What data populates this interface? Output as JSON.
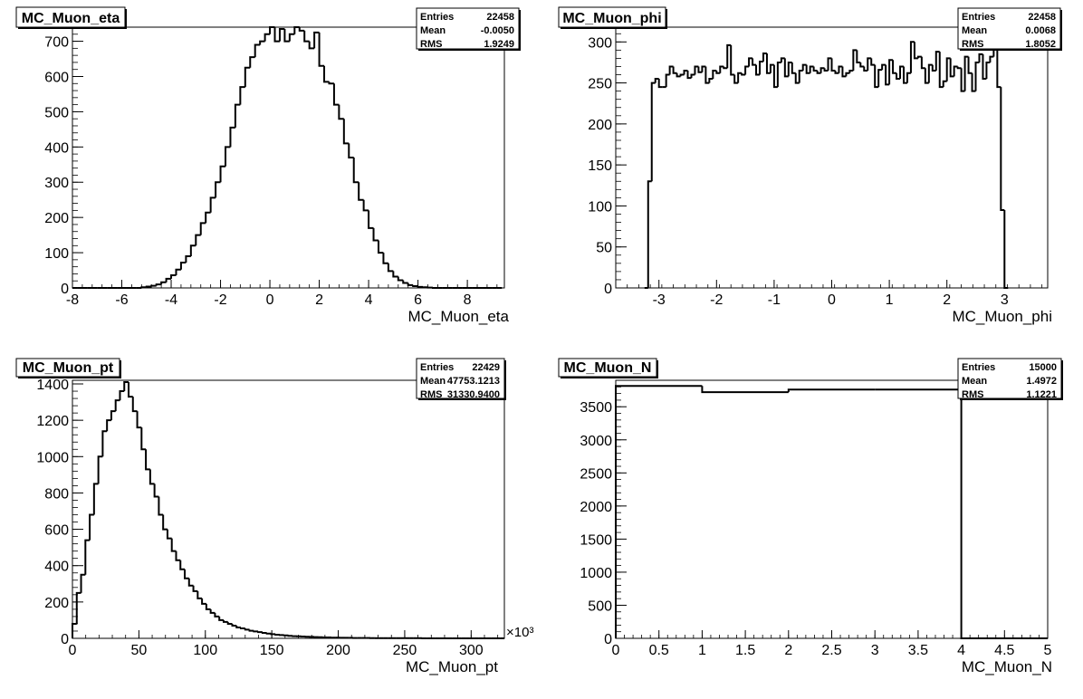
{
  "chart_data": [
    {
      "type": "histogram",
      "title": "MC_Muon_eta",
      "xlabel": "MC_Muon_eta",
      "xlim": [
        -8,
        9.5
      ],
      "ylim": [
        0,
        740
      ],
      "xticks": [
        "-8",
        "-6",
        "-4",
        "-2",
        "0",
        "2",
        "4",
        "6",
        "8"
      ],
      "yticks": [
        "0",
        "100",
        "200",
        "300",
        "400",
        "500",
        "600",
        "700"
      ],
      "stats": {
        "entries": "22458",
        "mean": "-0.0050",
        "rms": "1.9249"
      },
      "bins": {
        "start": -8,
        "width": 0.2,
        "values": [
          0,
          0,
          0,
          0,
          0,
          0,
          0,
          0,
          0,
          0,
          0,
          0,
          0,
          0,
          2,
          4,
          6,
          10,
          16,
          26,
          36,
          52,
          72,
          90,
          120,
          150,
          184,
          214,
          256,
          300,
          345,
          400,
          455,
          520,
          570,
          625,
          655,
          690,
          700,
          720,
          740,
          700,
          735,
          700,
          720,
          740,
          730,
          700,
          680,
          725,
          630,
          585,
          580,
          520,
          480,
          410,
          370,
          300,
          250,
          220,
          170,
          135,
          100,
          70,
          48,
          32,
          22,
          14,
          8,
          5,
          3,
          2,
          1,
          0,
          0,
          0,
          0,
          0,
          0,
          0,
          0,
          0,
          0,
          0,
          0,
          0,
          0
        ]
      }
    },
    {
      "type": "histogram",
      "title": "MC_Muon_phi",
      "xlabel": "MC_Muon_phi",
      "xlim": [
        -3.75,
        3.75
      ],
      "ylim": [
        0,
        318
      ],
      "xticks": [
        "-3",
        "-2",
        "-1",
        "0",
        "1",
        "2",
        "3"
      ],
      "yticks": [
        "0",
        "50",
        "100",
        "150",
        "200",
        "250",
        "300"
      ],
      "stats": {
        "entries": "22458",
        "mean": "0.0068",
        "rms": "1.8052"
      },
      "bins": {
        "start": -3.25,
        "width": 0.0625,
        "values": [
          0,
          130,
          250,
          255,
          245,
          245,
          260,
          270,
          262,
          258,
          260,
          265,
          256,
          260,
          270,
          263,
          270,
          250,
          255,
          265,
          262,
          270,
          268,
          296,
          260,
          250,
          262,
          260,
          270,
          280,
          272,
          260,
          276,
          286,
          262,
          272,
          245,
          275,
          280,
          258,
          275,
          262,
          250,
          265,
          272,
          262,
          270,
          265,
          262,
          268,
          265,
          280,
          265,
          262,
          270,
          258,
          262,
          265,
          290,
          275,
          270,
          265,
          280,
          272,
          245,
          266,
          272,
          248,
          278,
          262,
          255,
          270,
          250,
          262,
          300,
          280,
          282,
          268,
          250,
          272,
          265,
          288,
          245,
          252,
          280,
          258,
          270,
          268,
          240,
          282,
          262,
          240,
          275,
          285,
          255,
          275,
          282,
          300,
          245,
          95,
          0
        ]
      }
    },
    {
      "type": "histogram",
      "title": "MC_Muon_pt",
      "xlabel": "MC_Muon_pt",
      "xscale_label": "×10³",
      "xlim": [
        0,
        325
      ],
      "ylim": [
        0,
        1420
      ],
      "xticks": [
        "0",
        "50",
        "100",
        "150",
        "200",
        "250",
        "300"
      ],
      "yticks": [
        "0",
        "200",
        "400",
        "600",
        "800",
        "1000",
        "1200",
        "1400"
      ],
      "stats": {
        "entries": "22429",
        "mean": "47753.1213",
        "rms": "31330.9400"
      },
      "bins": {
        "start": 0,
        "width": 3.25,
        "values": [
          80,
          250,
          350,
          540,
          680,
          850,
          1000,
          1140,
          1200,
          1250,
          1310,
          1360,
          1410,
          1330,
          1250,
          1160,
          1040,
          930,
          850,
          780,
          680,
          600,
          550,
          480,
          430,
          380,
          330,
          290,
          260,
          220,
          190,
          160,
          140,
          120,
          100,
          90,
          80,
          70,
          60,
          55,
          48,
          42,
          38,
          34,
          30,
          26,
          23,
          20,
          18,
          16,
          14,
          12,
          11,
          10,
          9,
          8,
          7,
          6,
          5,
          5,
          4,
          4,
          3,
          3,
          3,
          2,
          2,
          2,
          2,
          1,
          1,
          1,
          1,
          1,
          1,
          1,
          1,
          1,
          1,
          1,
          1,
          0,
          0,
          0,
          0,
          0,
          0,
          0,
          0,
          0,
          0,
          0,
          0,
          0,
          0,
          0,
          0,
          0,
          0,
          0
        ]
      }
    },
    {
      "type": "histogram",
      "title": "MC_Muon_N",
      "xlabel": "MC_Muon_N",
      "xlim": [
        0,
        5
      ],
      "ylim": [
        0,
        3900
      ],
      "xticks": [
        "0",
        "0.5",
        "1",
        "1.5",
        "2",
        "2.5",
        "3",
        "3.5",
        "4",
        "4.5",
        "5"
      ],
      "yticks": [
        "0",
        "500",
        "1000",
        "1500",
        "2000",
        "2500",
        "3000",
        "3500"
      ],
      "stats": {
        "entries": "15000",
        "mean": "1.4972",
        "rms": "1.1221"
      },
      "bins": {
        "start": 0,
        "width": 1,
        "values": [
          3815,
          3720,
          3760,
          3760,
          0
        ]
      }
    }
  ],
  "stats_labels": {
    "entries": "Entries",
    "mean": "Mean",
    "rms": "RMS"
  }
}
